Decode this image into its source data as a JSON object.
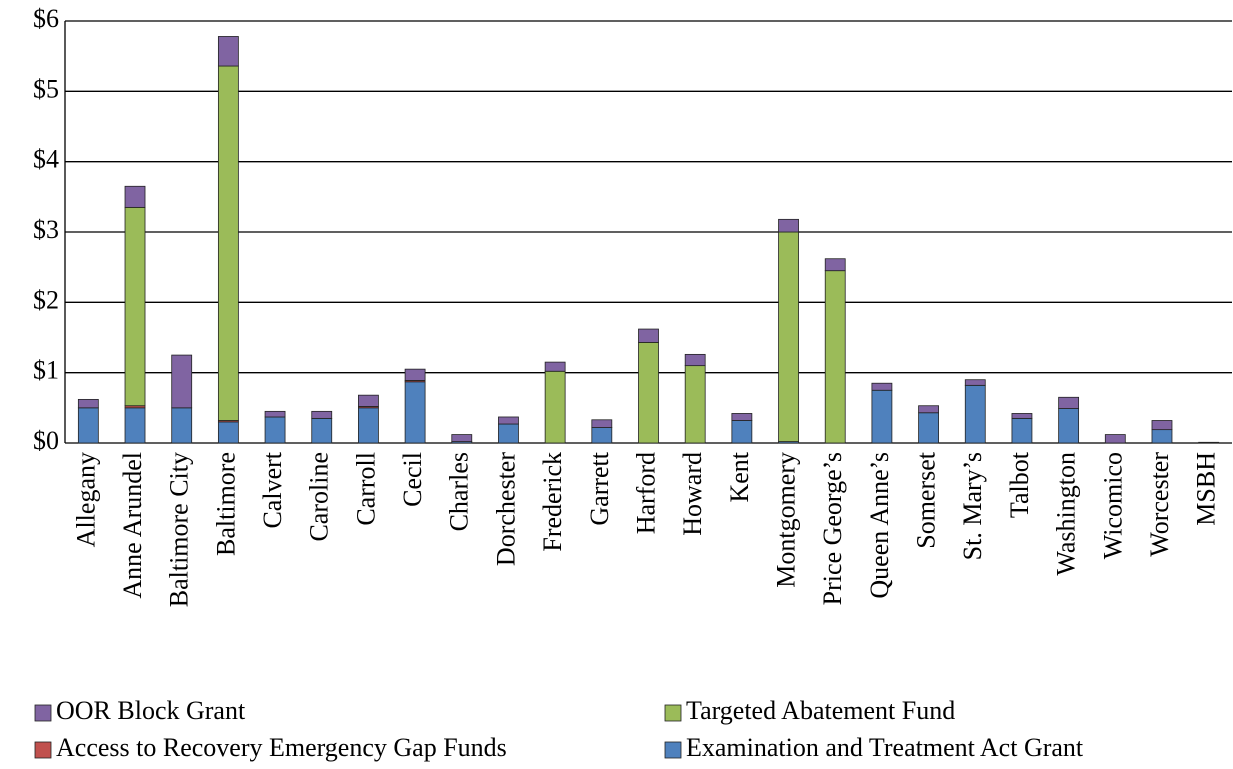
{
  "chart_data": {
    "type": "stacked_bar",
    "categories": [
      "Allegany",
      "Anne Arundel",
      "Baltimore City",
      "Baltimore",
      "Calvert",
      "Caroline",
      "Carroll",
      "Cecil",
      "Charles",
      "Dorchester",
      "Frederick",
      "Garrett",
      "Harford",
      "Howard",
      "Kent",
      "Montgomery",
      "Price George’s",
      "Queen Anne’s",
      "Somerset",
      "St. Mary’s",
      "Talbot",
      "Washington",
      "Wicomico",
      "Worcester",
      "MSBH"
    ],
    "series": [
      {
        "name": "Examination and Treatment Act Grant",
        "color": "#4f81bd",
        "values": [
          0.5,
          0.5,
          0.5,
          0.3,
          0.37,
          0.35,
          0.5,
          0.87,
          0.02,
          0.27,
          0,
          0.22,
          0,
          0,
          0.32,
          0.02,
          0,
          0.75,
          0.43,
          0.82,
          0.35,
          0.49,
          0,
          0.19,
          0
        ]
      },
      {
        "name": "Access to Recovery Emergency Gap Funds",
        "color": "#c0504d",
        "values": [
          0,
          0.03,
          0,
          0.02,
          0,
          0,
          0.02,
          0.02,
          0,
          0,
          0,
          0,
          0,
          0,
          0,
          0,
          0,
          0,
          0,
          0,
          0,
          0,
          0,
          0,
          0.01
        ]
      },
      {
        "name": "Targeted Abatement Fund",
        "color": "#9bbb59",
        "values": [
          0,
          2.82,
          0,
          5.04,
          0,
          0,
          0,
          0,
          0,
          0,
          1.02,
          0,
          1.43,
          1.1,
          0,
          2.98,
          2.45,
          0,
          0,
          0,
          0,
          0,
          0,
          0,
          0
        ]
      },
      {
        "name": "OOR Block Grant",
        "color": "#8064a2",
        "values": [
          0.12,
          0.3,
          0.75,
          0.42,
          0.08,
          0.1,
          0.16,
          0.16,
          0.1,
          0.1,
          0.13,
          0.11,
          0.19,
          0.16,
          0.1,
          0.18,
          0.17,
          0.1,
          0.1,
          0.08,
          0.07,
          0.16,
          0.12,
          0.13,
          0
        ]
      }
    ],
    "ylim": [
      0,
      6
    ],
    "yticks": [
      {
        "value": 0,
        "label": "$0"
      },
      {
        "value": 1,
        "label": "$1"
      },
      {
        "value": 2,
        "label": "$2"
      },
      {
        "value": 3,
        "label": "$3"
      },
      {
        "value": 4,
        "label": "$4"
      },
      {
        "value": 5,
        "label": "$5"
      },
      {
        "value": 6,
        "label": "$6"
      }
    ],
    "grid": true
  }
}
